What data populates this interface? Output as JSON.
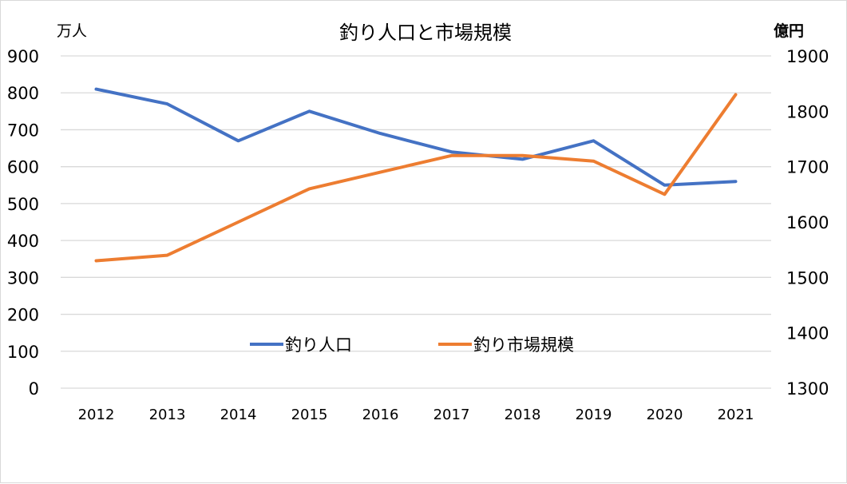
{
  "chart_data": {
    "type": "line",
    "title": "釣り人口と市場規模",
    "ylabel_left": "万人",
    "ylabel_right": "億円",
    "categories": [
      "2012",
      "2013",
      "2014",
      "2015",
      "2016",
      "2017",
      "2018",
      "2019",
      "2020",
      "2021"
    ],
    "ylim_left": [
      0,
      900
    ],
    "yticks_left": [
      "0",
      "100",
      "200",
      "300",
      "400",
      "500",
      "600",
      "700",
      "800",
      "900"
    ],
    "ylim_right": [
      1300,
      1900
    ],
    "yticks_right": [
      "1300",
      "1400",
      "1500",
      "1600",
      "1700",
      "1800",
      "1900"
    ],
    "grid": true,
    "legend_position": "center",
    "series": [
      {
        "name": "釣り人口",
        "axis": "left",
        "color": "#4472C4",
        "values": [
          810,
          770,
          670,
          750,
          690,
          640,
          620,
          670,
          550,
          560
        ]
      },
      {
        "name": "釣り市場規模",
        "axis": "right",
        "color": "#ED7D31",
        "values": [
          1530,
          1540,
          1600,
          1660,
          1690,
          1720,
          1720,
          1710,
          1650,
          1830
        ]
      }
    ]
  }
}
